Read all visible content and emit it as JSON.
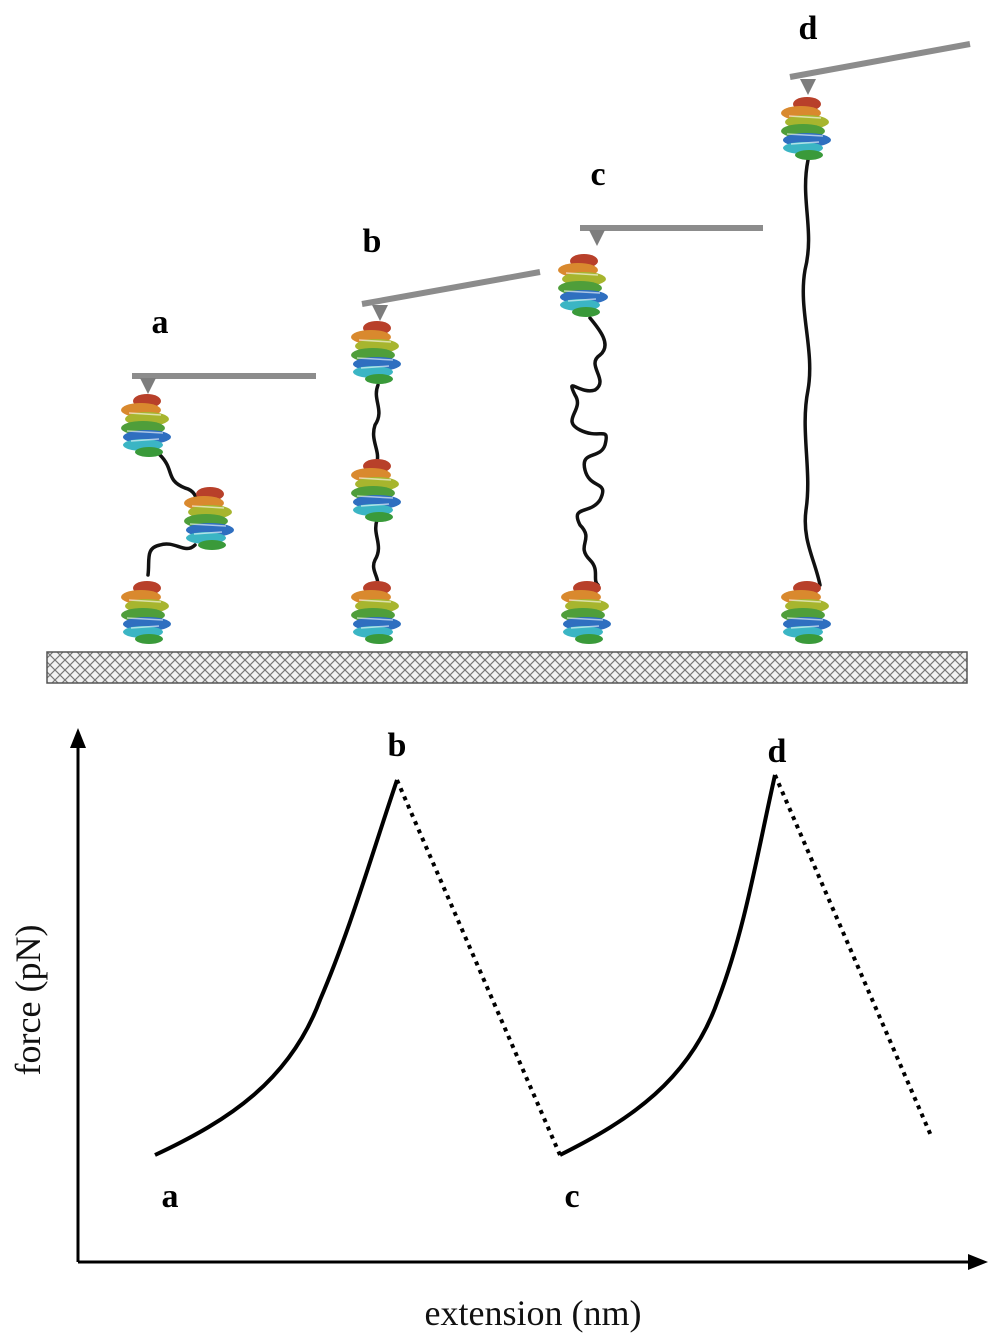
{
  "diagram": {
    "stages": [
      {
        "label": "a"
      },
      {
        "label": "b"
      },
      {
        "label": "c"
      },
      {
        "label": "d"
      }
    ],
    "plot": {
      "point_labels": [
        "a",
        "b",
        "c",
        "d"
      ],
      "y_axis_label": "force (pN)",
      "x_axis_label": "extension (nm)"
    }
  }
}
